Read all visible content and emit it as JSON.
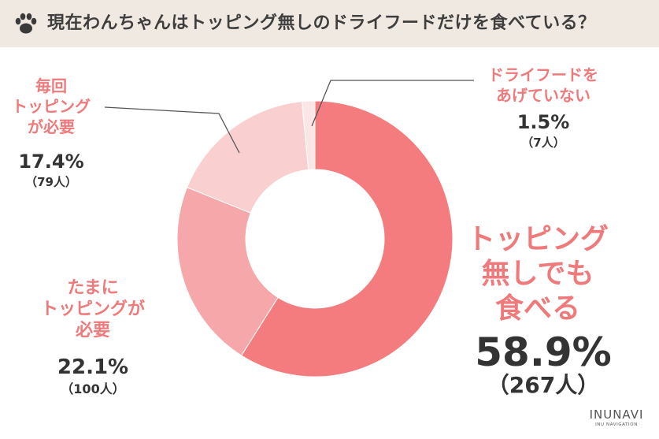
{
  "title": "現在わんちゃんはトッピング無しのドライフードだけを食べている？",
  "chart_data": {
    "type": "pie",
    "donut": true,
    "slices": [
      {
        "name": "トッピング無しでも食べる",
        "percent": 58.9,
        "percent_label": "58.9%",
        "count_label": "（267人）",
        "color": "#f47c7e"
      },
      {
        "name": "たまにトッピングが必要",
        "percent": 22.1,
        "percent_label": "22.1%",
        "count_label": "（100人）",
        "color": "#f6a7a9"
      },
      {
        "name": "毎回トッピングが必要",
        "percent": 17.4,
        "percent_label": "17.4%",
        "count_label": "（79人）",
        "color": "#f9cfcf"
      },
      {
        "name": "ドライフードをあげていない",
        "percent": 1.5,
        "percent_label": "1.5%",
        "count_label": "（7人）",
        "color": "#fbe6e6"
      }
    ]
  },
  "labels": {
    "main": {
      "lines": [
        "トッピング",
        "無しでも",
        "食べる"
      ]
    },
    "sometimes": {
      "lines": [
        "たまに",
        "トッピングが",
        "必要"
      ]
    },
    "every": {
      "lines": [
        "毎回",
        "トッピング",
        "が必要"
      ]
    },
    "none": {
      "lines": [
        "ドライフードを",
        "あげていない"
      ]
    }
  },
  "logo": {
    "main": "INUNAVI",
    "sub": "INU NAVIGATION"
  },
  "colors": {
    "header_bg": "#efe9e1",
    "accent": "#ee7a7c",
    "text": "#333333"
  }
}
